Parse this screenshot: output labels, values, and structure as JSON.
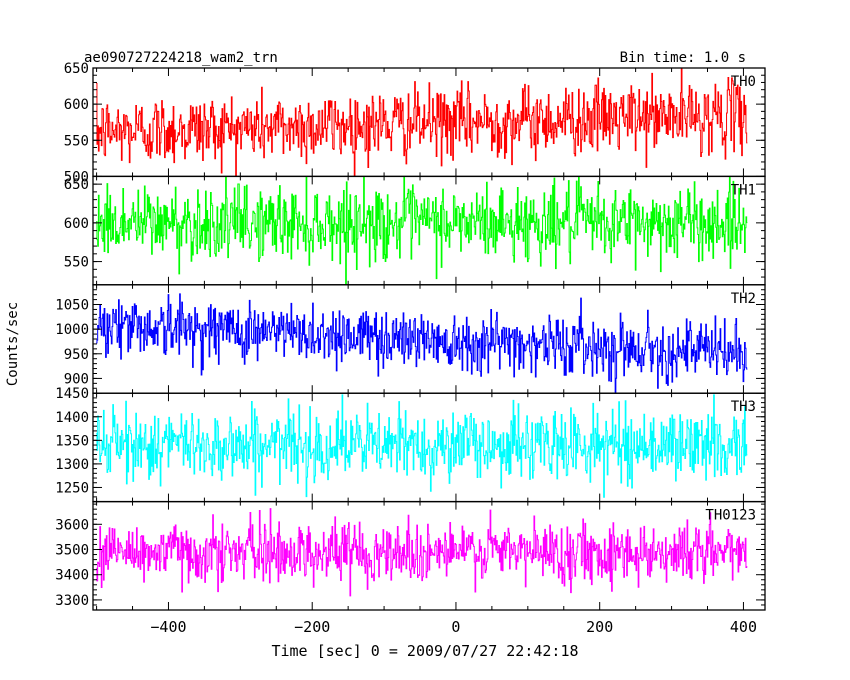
{
  "chart_data": {
    "type": "line",
    "title": "ae090727224218_wam2_trn",
    "subtitle": "Bin time: 1.0 s",
    "xlabel": "Time [sec] 0 = 2009/07/27 22:42:18",
    "ylabel": "Counts/sec",
    "xlim": [
      -505,
      430
    ],
    "xticks": [
      -400,
      -200,
      0,
      200,
      400
    ],
    "x_range_data": [
      -500,
      405
    ],
    "bin_time": 1.0,
    "panels": [
      {
        "name": "TH0",
        "color": "#ff0000",
        "ylim": [
          500,
          650
        ],
        "yticks": [
          500,
          550,
          600,
          650
        ],
        "mean_start": 562,
        "mean_end": 585,
        "noise_sd": 24
      },
      {
        "name": "TH1",
        "color": "#00ff00",
        "ylim": [
          520,
          660
        ],
        "yticks": [
          550,
          600,
          650
        ],
        "mean_start": 600,
        "mean_end": 600,
        "noise_sd": 24
      },
      {
        "name": "TH2",
        "color": "#0000ff",
        "ylim": [
          870,
          1090
        ],
        "yticks": [
          900,
          950,
          1000,
          1050
        ],
        "mean_start": 1010,
        "mean_end": 952,
        "noise_sd": 30
      },
      {
        "name": "TH3",
        "color": "#00ffff",
        "ylim": [
          1220,
          1450
        ],
        "yticks": [
          1250,
          1300,
          1350,
          1400,
          1450
        ],
        "mean_start": 1340,
        "mean_end": 1340,
        "noise_sd": 37
      },
      {
        "name": "TH0123",
        "color": "#ff00ff",
        "ylim": [
          3260,
          3690
        ],
        "yticks": [
          3300,
          3400,
          3500,
          3600
        ],
        "mean_start": 3490,
        "mean_end": 3490,
        "noise_sd": 60
      }
    ]
  }
}
